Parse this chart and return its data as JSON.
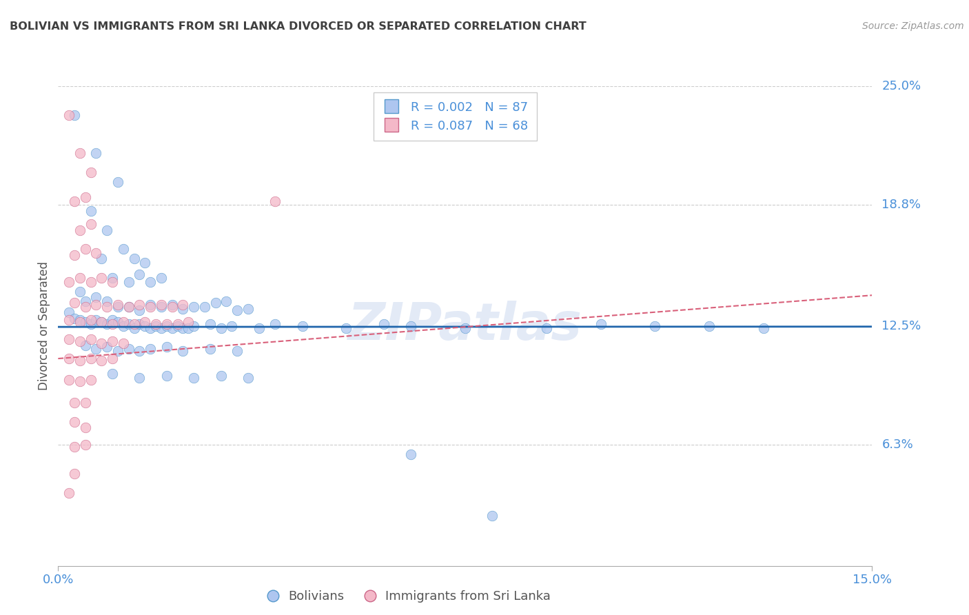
{
  "title": "BOLIVIAN VS IMMIGRANTS FROM SRI LANKA DIVORCED OR SEPARATED CORRELATION CHART",
  "source": "Source: ZipAtlas.com",
  "ylabel_label": "Divorced or Separated",
  "legend1_color": "#aec6f0",
  "legend2_color": "#f4b8c8",
  "watermark": "ZIPatlas",
  "blue_line_color": "#2166ac",
  "pink_line_color": "#d9607a",
  "dot_edge_blue": "#5599cc",
  "dot_edge_pink": "#cc6688",
  "grid_color": "#cccccc",
  "title_color": "#404040",
  "axis_label_color": "#555555",
  "tick_color": "#4a90d9",
  "xmin": 0.0,
  "xmax": 0.15,
  "ymin": 0.0,
  "ymax": 0.25,
  "ytick_vals": [
    0.063,
    0.125,
    0.188,
    0.25
  ],
  "ytick_labels": [
    "6.3%",
    "12.5%",
    "18.8%",
    "25.0%"
  ],
  "xtick_vals": [
    0.0,
    0.15
  ],
  "xtick_labels": [
    "0.0%",
    "15.0%"
  ],
  "blue_R": 0.002,
  "blue_N": 87,
  "pink_R": 0.087,
  "pink_N": 68,
  "blue_intercept": 0.1245,
  "blue_slope": 0.001,
  "pink_intercept": 0.108,
  "pink_slope": 0.22,
  "blue_dots": [
    [
      0.003,
      0.235
    ],
    [
      0.007,
      0.215
    ],
    [
      0.011,
      0.2
    ],
    [
      0.006,
      0.185
    ],
    [
      0.009,
      0.175
    ],
    [
      0.008,
      0.16
    ],
    [
      0.012,
      0.165
    ],
    [
      0.014,
      0.16
    ],
    [
      0.016,
      0.158
    ],
    [
      0.01,
      0.15
    ],
    [
      0.013,
      0.148
    ],
    [
      0.015,
      0.152
    ],
    [
      0.017,
      0.148
    ],
    [
      0.019,
      0.15
    ],
    [
      0.004,
      0.143
    ],
    [
      0.005,
      0.138
    ],
    [
      0.007,
      0.14
    ],
    [
      0.009,
      0.138
    ],
    [
      0.011,
      0.135
    ],
    [
      0.013,
      0.135
    ],
    [
      0.015,
      0.133
    ],
    [
      0.017,
      0.136
    ],
    [
      0.019,
      0.135
    ],
    [
      0.021,
      0.136
    ],
    [
      0.023,
      0.134
    ],
    [
      0.025,
      0.135
    ],
    [
      0.027,
      0.135
    ],
    [
      0.029,
      0.137
    ],
    [
      0.031,
      0.138
    ],
    [
      0.033,
      0.133
    ],
    [
      0.035,
      0.134
    ],
    [
      0.002,
      0.132
    ],
    [
      0.003,
      0.129
    ],
    [
      0.004,
      0.128
    ],
    [
      0.005,
      0.127
    ],
    [
      0.006,
      0.126
    ],
    [
      0.007,
      0.128
    ],
    [
      0.008,
      0.127
    ],
    [
      0.009,
      0.126
    ],
    [
      0.01,
      0.128
    ],
    [
      0.011,
      0.127
    ],
    [
      0.012,
      0.125
    ],
    [
      0.013,
      0.126
    ],
    [
      0.014,
      0.124
    ],
    [
      0.015,
      0.126
    ],
    [
      0.016,
      0.125
    ],
    [
      0.017,
      0.124
    ],
    [
      0.018,
      0.125
    ],
    [
      0.019,
      0.124
    ],
    [
      0.02,
      0.125
    ],
    [
      0.021,
      0.124
    ],
    [
      0.022,
      0.125
    ],
    [
      0.023,
      0.124
    ],
    [
      0.024,
      0.124
    ],
    [
      0.025,
      0.125
    ],
    [
      0.028,
      0.126
    ],
    [
      0.03,
      0.124
    ],
    [
      0.032,
      0.125
    ],
    [
      0.037,
      0.124
    ],
    [
      0.04,
      0.126
    ],
    [
      0.045,
      0.125
    ],
    [
      0.053,
      0.124
    ],
    [
      0.06,
      0.126
    ],
    [
      0.065,
      0.125
    ],
    [
      0.075,
      0.124
    ],
    [
      0.09,
      0.124
    ],
    [
      0.1,
      0.126
    ],
    [
      0.11,
      0.125
    ],
    [
      0.12,
      0.125
    ],
    [
      0.13,
      0.124
    ],
    [
      0.005,
      0.115
    ],
    [
      0.007,
      0.113
    ],
    [
      0.009,
      0.114
    ],
    [
      0.011,
      0.112
    ],
    [
      0.013,
      0.113
    ],
    [
      0.015,
      0.112
    ],
    [
      0.017,
      0.113
    ],
    [
      0.02,
      0.114
    ],
    [
      0.023,
      0.112
    ],
    [
      0.028,
      0.113
    ],
    [
      0.033,
      0.112
    ],
    [
      0.01,
      0.1
    ],
    [
      0.015,
      0.098
    ],
    [
      0.02,
      0.099
    ],
    [
      0.025,
      0.098
    ],
    [
      0.03,
      0.099
    ],
    [
      0.035,
      0.098
    ],
    [
      0.065,
      0.058
    ],
    [
      0.08,
      0.026
    ]
  ],
  "pink_dots": [
    [
      0.002,
      0.235
    ],
    [
      0.004,
      0.215
    ],
    [
      0.006,
      0.205
    ],
    [
      0.003,
      0.19
    ],
    [
      0.005,
      0.192
    ],
    [
      0.004,
      0.175
    ],
    [
      0.006,
      0.178
    ],
    [
      0.003,
      0.162
    ],
    [
      0.005,
      0.165
    ],
    [
      0.007,
      0.163
    ],
    [
      0.002,
      0.148
    ],
    [
      0.004,
      0.15
    ],
    [
      0.006,
      0.148
    ],
    [
      0.008,
      0.15
    ],
    [
      0.01,
      0.148
    ],
    [
      0.003,
      0.137
    ],
    [
      0.005,
      0.135
    ],
    [
      0.007,
      0.136
    ],
    [
      0.009,
      0.135
    ],
    [
      0.011,
      0.136
    ],
    [
      0.013,
      0.135
    ],
    [
      0.015,
      0.136
    ],
    [
      0.017,
      0.135
    ],
    [
      0.019,
      0.136
    ],
    [
      0.021,
      0.135
    ],
    [
      0.023,
      0.136
    ],
    [
      0.002,
      0.128
    ],
    [
      0.004,
      0.127
    ],
    [
      0.006,
      0.128
    ],
    [
      0.008,
      0.127
    ],
    [
      0.01,
      0.126
    ],
    [
      0.012,
      0.127
    ],
    [
      0.014,
      0.126
    ],
    [
      0.016,
      0.127
    ],
    [
      0.018,
      0.126
    ],
    [
      0.02,
      0.126
    ],
    [
      0.022,
      0.126
    ],
    [
      0.024,
      0.127
    ],
    [
      0.002,
      0.118
    ],
    [
      0.004,
      0.117
    ],
    [
      0.006,
      0.118
    ],
    [
      0.008,
      0.116
    ],
    [
      0.01,
      0.117
    ],
    [
      0.012,
      0.116
    ],
    [
      0.002,
      0.108
    ],
    [
      0.004,
      0.107
    ],
    [
      0.006,
      0.108
    ],
    [
      0.008,
      0.107
    ],
    [
      0.01,
      0.108
    ],
    [
      0.002,
      0.097
    ],
    [
      0.004,
      0.096
    ],
    [
      0.006,
      0.097
    ],
    [
      0.003,
      0.085
    ],
    [
      0.005,
      0.085
    ],
    [
      0.003,
      0.075
    ],
    [
      0.005,
      0.072
    ],
    [
      0.003,
      0.062
    ],
    [
      0.005,
      0.063
    ],
    [
      0.003,
      0.048
    ],
    [
      0.002,
      0.038
    ],
    [
      0.04,
      0.19
    ]
  ]
}
